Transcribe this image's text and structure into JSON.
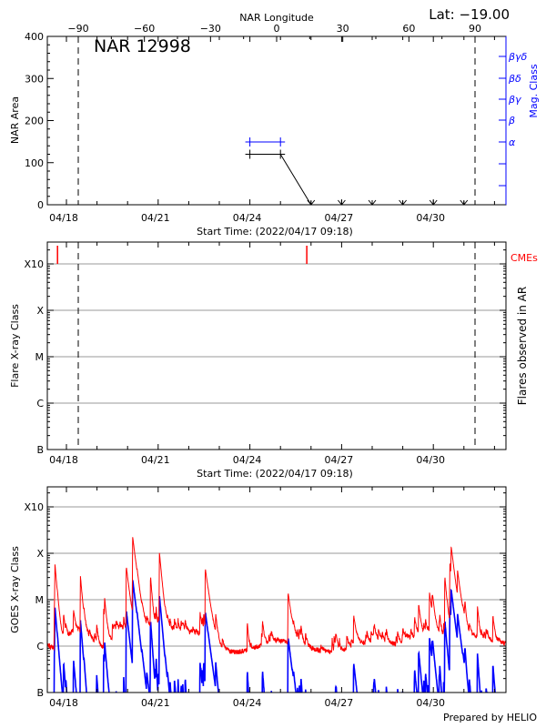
{
  "header": {
    "lat_label": "Lat: −19.00",
    "region_title": "NAR 12998",
    "top_axis_label": "NAR Longitude",
    "footer": "Prepared by HELIO"
  },
  "colors": {
    "area": "#000000",
    "mag_class": "#0000ff",
    "cme": "#ff0000",
    "goes_long": "#ff0000",
    "goes_short": "#0000ff",
    "grid": "#999999"
  },
  "chart_data": [
    {
      "type": "line",
      "title": "NAR 12998",
      "xlabel": "Start Time: (2022/04/17 09:18)",
      "ylabel": "NAR Area",
      "y2label": "Mag. Class",
      "x2label": "NAR Longitude",
      "ylim": [
        0,
        400
      ],
      "yticks": [
        "0",
        "100",
        "200",
        "300",
        "400"
      ],
      "xticks": [
        "04/18",
        "04/21",
        "04/24",
        "04/27",
        "04/30"
      ],
      "x2ticks": [
        "-90",
        "-60",
        "-30",
        "0",
        "30",
        "60",
        "90"
      ],
      "y2ticks": [
        "α",
        "β",
        "βγ",
        "βδ",
        "βγδ"
      ],
      "limb_lines_longitude": [
        -90,
        90
      ],
      "series": [
        {
          "x": [
            "04/24",
            "04/25",
            "04/26",
            "04/27",
            "04/28",
            "04/29",
            "04/30",
            "05/01"
          ],
          "values": [
            120,
            120,
            0,
            0,
            0,
            0,
            0,
            0
          ]
        },
        {
          "x": [
            "04/24",
            "04/25"
          ],
          "values": [
            "α",
            "α"
          ]
        }
      ]
    },
    {
      "type": "scatter",
      "xlabel": "Start Time: (2022/04/17 09:18)",
      "ylabel": "Flare X-ray Class",
      "y2label": "Flares observed in AR",
      "legend": "CMEs",
      "yticks": [
        "B",
        "C",
        "M",
        "X",
        "X10"
      ],
      "xticks": [
        "04/18",
        "04/21",
        "04/24",
        "04/27",
        "04/30"
      ],
      "cme_times": [
        "04/17 17:00",
        "04/25 20:40"
      ],
      "grid": true
    },
    {
      "type": "line",
      "ylabel": "GOES X-ray Class",
      "yticks": [
        "B",
        "C",
        "M",
        "X",
        "X10"
      ],
      "xticks": [
        "04/18",
        "04/21",
        "04/24",
        "04/27",
        "04/30"
      ],
      "grid": true,
      "peaks": [
        {
          "time": "04/17 15:00",
          "class": "M5"
        },
        {
          "time": "04/18 11:00",
          "class": "M3"
        },
        {
          "time": "04/19 23:00",
          "class": "M5"
        },
        {
          "time": "04/20 04:00",
          "class": "X2.2"
        },
        {
          "time": "04/20 18:00",
          "class": "M3"
        },
        {
          "time": "04/21 01:00",
          "class": "X1.0"
        },
        {
          "time": "04/22 13:00",
          "class": "M4.5"
        },
        {
          "time": "04/25 06:00",
          "class": "M1.3"
        },
        {
          "time": "04/29 21:00",
          "class": "M1.2"
        },
        {
          "time": "04/30 09:00",
          "class": "M3"
        },
        {
          "time": "04/30 13:00",
          "class": "M6"
        },
        {
          "time": "04/30 14:00",
          "class": "X1.1"
        },
        {
          "time": "04/30 19:00",
          "class": "M3"
        }
      ]
    }
  ]
}
